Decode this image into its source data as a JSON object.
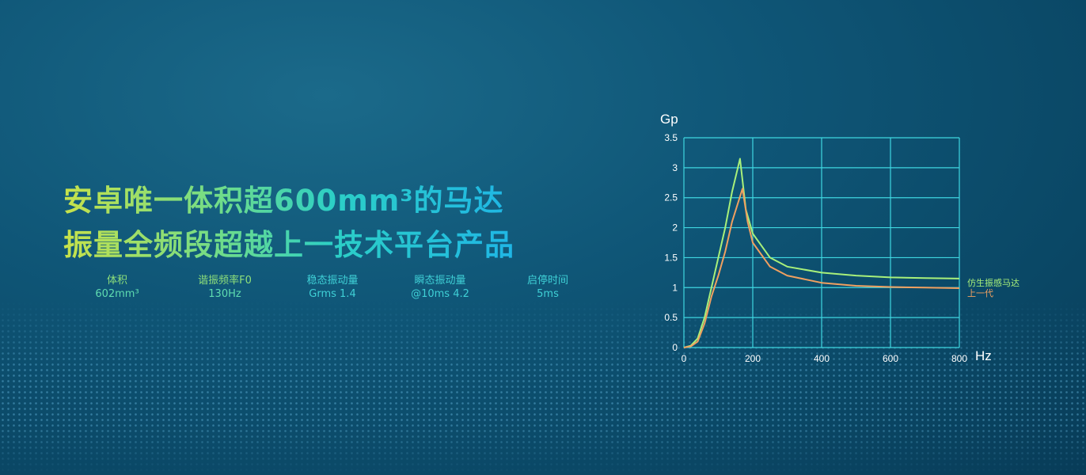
{
  "headline": {
    "line1": "安卓唯一体积超600mm³的马达",
    "line2": "振量全频段超越上一技术平台产品"
  },
  "specs": [
    {
      "label": "体积",
      "value": "602mm³"
    },
    {
      "label": "谐振频率F0",
      "value": "130Hz"
    },
    {
      "label": "稳态振动量",
      "value": "Grms 1.4"
    },
    {
      "label": "瞬态振动量",
      "value": "@10ms 4.2"
    },
    {
      "label": "启停时间",
      "value": "5ms"
    }
  ],
  "chart_data": {
    "type": "line",
    "xlabel": "Hz",
    "ylabel": "Gp",
    "xlim": [
      0,
      800
    ],
    "ylim": [
      0,
      3.5
    ],
    "xticks": [
      "0",
      "200",
      "400",
      "600",
      "800"
    ],
    "yticks": [
      "0",
      "0.5",
      "1",
      "1.5",
      "2",
      "2.5",
      "3",
      "3.5"
    ],
    "grid": true,
    "legend": "right",
    "series": [
      {
        "name": "仿生振感马达",
        "color": "#a8f07a",
        "x": [
          0,
          20,
          40,
          60,
          80,
          100,
          120,
          140,
          163,
          180,
          200,
          250,
          300,
          400,
          500,
          600,
          700,
          800
        ],
        "y": [
          0,
          0.03,
          0.15,
          0.5,
          1.0,
          1.5,
          2.0,
          2.6,
          3.15,
          2.3,
          1.9,
          1.5,
          1.35,
          1.25,
          1.2,
          1.17,
          1.16,
          1.15
        ]
      },
      {
        "name": "上一代",
        "color": "#f0a060",
        "x": [
          0,
          20,
          40,
          60,
          80,
          100,
          120,
          140,
          170,
          185,
          200,
          250,
          300,
          400,
          500,
          600,
          700,
          800
        ],
        "y": [
          0,
          0.02,
          0.1,
          0.4,
          0.85,
          1.2,
          1.6,
          2.1,
          2.65,
          2.1,
          1.75,
          1.35,
          1.2,
          1.08,
          1.03,
          1.01,
          1.0,
          0.99
        ]
      }
    ]
  }
}
